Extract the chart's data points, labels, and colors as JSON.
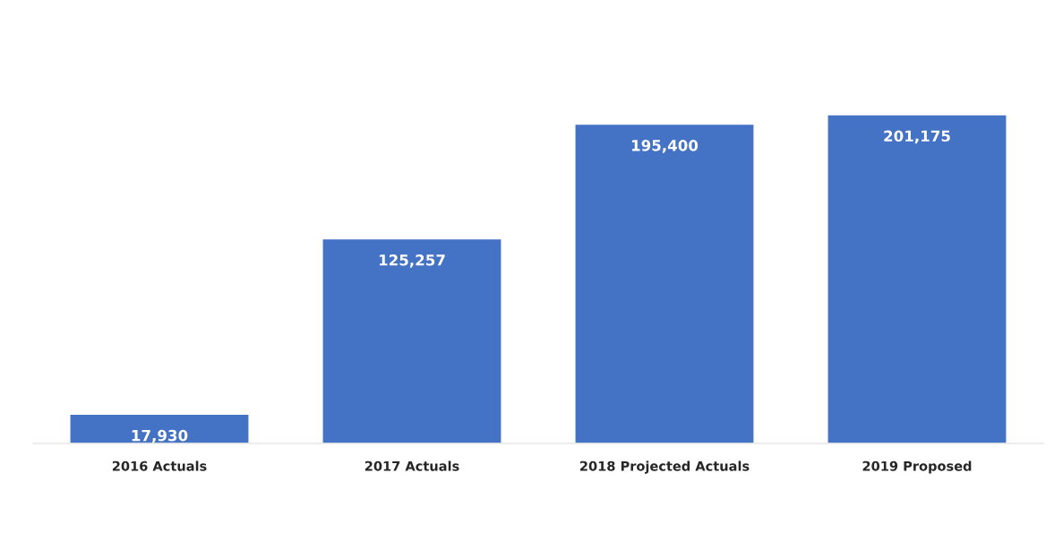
{
  "chart_data": {
    "type": "bar",
    "categories": [
      "2016 Actuals",
      "2017 Actuals",
      "2018 Projected Actuals",
      "2019 Proposed"
    ],
    "values": [
      17930,
      125257,
      195400,
      201175
    ],
    "value_labels": [
      "17,930",
      "125,257",
      "195,400",
      "201,175"
    ],
    "color": "#4472c4",
    "grid": false,
    "legend": false
  }
}
